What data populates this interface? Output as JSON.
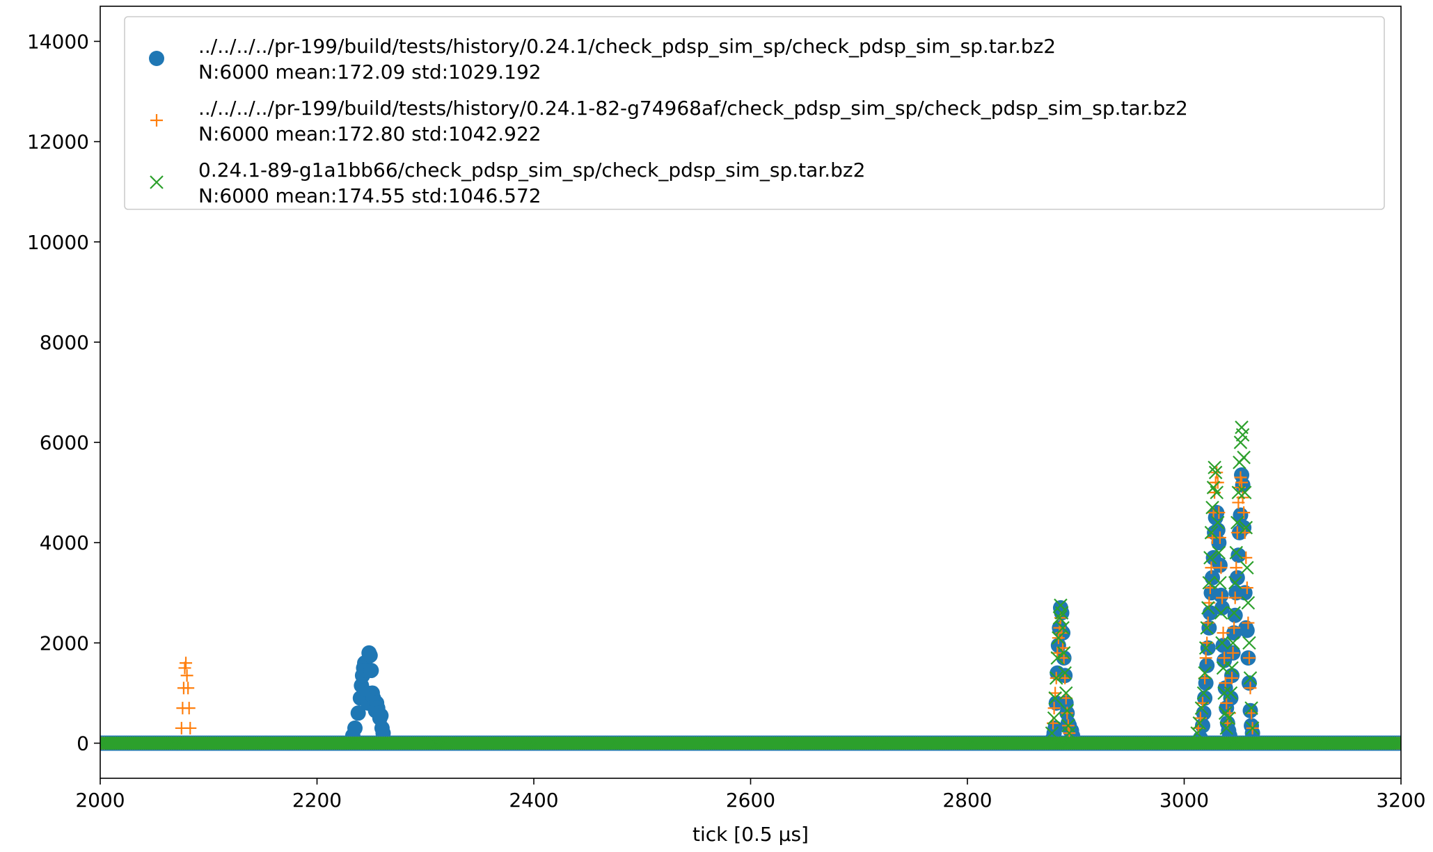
{
  "chart_data": {
    "type": "scatter",
    "xlabel": "tick [0.5 μs]",
    "ylabel": "",
    "title": "",
    "xlim": [
      2000,
      3200
    ],
    "ylim": [
      -700,
      14700
    ],
    "x_ticks": [
      2000,
      2200,
      2400,
      2600,
      2800,
      3000,
      3200
    ],
    "y_ticks": [
      0,
      2000,
      4000,
      6000,
      8000,
      10000,
      12000,
      14000
    ],
    "x_tick_labels": [
      "2000",
      "2200",
      "2400",
      "2600",
      "2800",
      "3000",
      "3200"
    ],
    "y_tick_labels": [
      "0",
      "2000",
      "4000",
      "6000",
      "8000",
      "10000",
      "12000",
      "14000"
    ],
    "grid": false,
    "legend_position": "top",
    "baseline": {
      "value": 0,
      "from": 2000,
      "to": 3200,
      "step": 2
    },
    "series": [
      {
        "name": "../../../../pr-199/build/tests/history/0.24.1/check_pdsp_sim_sp/check_pdsp_sim_sp.tar.bz2",
        "stats": "N:6000 mean:172.09 std:1029.192",
        "marker": "circle",
        "color": "#1f77b4",
        "points": [
          [
            2233,
            150
          ],
          [
            2235,
            300
          ],
          [
            2238,
            600
          ],
          [
            2240,
            900
          ],
          [
            2241,
            1150
          ],
          [
            2242,
            1350
          ],
          [
            2243,
            1500
          ],
          [
            2244,
            1600
          ],
          [
            2245,
            1450
          ],
          [
            2246,
            1000
          ],
          [
            2247,
            800
          ],
          [
            2248,
            1800
          ],
          [
            2249,
            1750
          ],
          [
            2250,
            1450
          ],
          [
            2251,
            1000
          ],
          [
            2252,
            900
          ],
          [
            2253,
            850
          ],
          [
            2254,
            650
          ],
          [
            2255,
            800
          ],
          [
            2256,
            700
          ],
          [
            2257,
            600
          ],
          [
            2258,
            500
          ],
          [
            2259,
            550
          ],
          [
            2260,
            300
          ],
          [
            2261,
            200
          ],
          [
            2879,
            100
          ],
          [
            2880,
            200
          ],
          [
            2881,
            300
          ],
          [
            2882,
            800
          ],
          [
            2883,
            1400
          ],
          [
            2884,
            1950
          ],
          [
            2885,
            2300
          ],
          [
            2886,
            2700
          ],
          [
            2887,
            2600
          ],
          [
            2888,
            2200
          ],
          [
            2889,
            1700
          ],
          [
            2890,
            1350
          ],
          [
            2891,
            800
          ],
          [
            2892,
            600
          ],
          [
            2893,
            400
          ],
          [
            2894,
            350
          ],
          [
            2895,
            250
          ],
          [
            2896,
            250
          ],
          [
            2897,
            150
          ],
          [
            3015,
            100
          ],
          [
            3017,
            350
          ],
          [
            3018,
            600
          ],
          [
            3019,
            900
          ],
          [
            3020,
            1200
          ],
          [
            3021,
            1550
          ],
          [
            3022,
            1900
          ],
          [
            3023,
            2300
          ],
          [
            3024,
            2600
          ],
          [
            3025,
            3000
          ],
          [
            3026,
            3300
          ],
          [
            3027,
            3700
          ],
          [
            3028,
            4200
          ],
          [
            3029,
            4500
          ],
          [
            3030,
            4600
          ],
          [
            3031,
            4250
          ],
          [
            3032,
            4000
          ],
          [
            3033,
            3550
          ],
          [
            3034,
            2950
          ],
          [
            3035,
            2700
          ],
          [
            3036,
            1950
          ],
          [
            3037,
            1650
          ],
          [
            3038,
            1100
          ],
          [
            3039,
            700
          ],
          [
            3040,
            400
          ],
          [
            3041,
            250
          ],
          [
            3042,
            150
          ],
          [
            3043,
            900
          ],
          [
            3044,
            1350
          ],
          [
            3045,
            1800
          ],
          [
            3046,
            2200
          ],
          [
            3047,
            2550
          ],
          [
            3048,
            3000
          ],
          [
            3049,
            3300
          ],
          [
            3050,
            3750
          ],
          [
            3051,
            4200
          ],
          [
            3052,
            4550
          ],
          [
            3053,
            5350
          ],
          [
            3054,
            5150
          ],
          [
            3055,
            4300
          ],
          [
            3056,
            3000
          ],
          [
            3057,
            2300
          ],
          [
            3058,
            2250
          ],
          [
            3059,
            1700
          ],
          [
            3060,
            1200
          ],
          [
            3061,
            650
          ],
          [
            3062,
            350
          ],
          [
            3063,
            200
          ]
        ]
      },
      {
        "name": "../../../../pr-199/build/tests/history/0.24.1-82-g74968af/check_pdsp_sim_sp/check_pdsp_sim_sp.tar.bz2",
        "stats": "N:6000 mean:172.80 std:1042.922",
        "marker": "plus",
        "color": "#ff7f0e",
        "points": [
          [
            2075,
            300
          ],
          [
            2076,
            700
          ],
          [
            2077,
            1100
          ],
          [
            2078,
            1500
          ],
          [
            2079,
            1600
          ],
          [
            2080,
            1350
          ],
          [
            2081,
            1100
          ],
          [
            2082,
            700
          ],
          [
            2083,
            300
          ],
          [
            2879,
            400
          ],
          [
            2880,
            700
          ],
          [
            2881,
            1000
          ],
          [
            2882,
            1300
          ],
          [
            2883,
            1800
          ],
          [
            2884,
            2100
          ],
          [
            2885,
            2300
          ],
          [
            2886,
            2500
          ],
          [
            2887,
            2200
          ],
          [
            2888,
            1900
          ],
          [
            2889,
            1700
          ],
          [
            2890,
            1300
          ],
          [
            2891,
            900
          ],
          [
            2892,
            600
          ],
          [
            2893,
            350
          ],
          [
            2894,
            200
          ],
          [
            3013,
            300
          ],
          [
            3015,
            500
          ],
          [
            3017,
            800
          ],
          [
            3019,
            1300
          ],
          [
            3020,
            1700
          ],
          [
            3021,
            2000
          ],
          [
            3022,
            2400
          ],
          [
            3023,
            2800
          ],
          [
            3024,
            3100
          ],
          [
            3025,
            3500
          ],
          [
            3026,
            4100
          ],
          [
            3027,
            4600
          ],
          [
            3028,
            5000
          ],
          [
            3029,
            5200
          ],
          [
            3030,
            5400
          ],
          [
            3031,
            5200
          ],
          [
            3032,
            4600
          ],
          [
            3033,
            4100
          ],
          [
            3034,
            3500
          ],
          [
            3035,
            2900
          ],
          [
            3036,
            2200
          ],
          [
            3037,
            1700
          ],
          [
            3038,
            1200
          ],
          [
            3039,
            800
          ],
          [
            3040,
            400
          ],
          [
            3042,
            600
          ],
          [
            3044,
            1300
          ],
          [
            3045,
            1800
          ],
          [
            3046,
            2300
          ],
          [
            3047,
            2900
          ],
          [
            3048,
            3500
          ],
          [
            3049,
            4200
          ],
          [
            3050,
            4800
          ],
          [
            3051,
            5100
          ],
          [
            3052,
            5300
          ],
          [
            3053,
            5200
          ],
          [
            3054,
            4900
          ],
          [
            3055,
            4600
          ],
          [
            3056,
            4200
          ],
          [
            3057,
            3700
          ],
          [
            3058,
            3100
          ],
          [
            3059,
            2400
          ],
          [
            3060,
            1700
          ],
          [
            3061,
            1100
          ],
          [
            3062,
            600
          ],
          [
            3063,
            300
          ]
        ]
      },
      {
        "name": "0.24.1-89-g1a1bb66/check_pdsp_sim_sp/check_pdsp_sim_sp.tar.bz2",
        "stats": "N:6000 mean:174.55 std:1046.572",
        "marker": "x",
        "color": "#2ca02c",
        "points": [
          [
            2878,
            200
          ],
          [
            2880,
            500
          ],
          [
            2881,
            900
          ],
          [
            2882,
            1300
          ],
          [
            2883,
            1700
          ],
          [
            2884,
            2100
          ],
          [
            2885,
            2500
          ],
          [
            2886,
            2750
          ],
          [
            2887,
            2600
          ],
          [
            2888,
            2300
          ],
          [
            2889,
            1800
          ],
          [
            2890,
            1400
          ],
          [
            2891,
            1000
          ],
          [
            2892,
            650
          ],
          [
            2893,
            350
          ],
          [
            2894,
            200
          ],
          [
            3012,
            200
          ],
          [
            3014,
            400
          ],
          [
            3016,
            700
          ],
          [
            3018,
            1000
          ],
          [
            3019,
            1400
          ],
          [
            3020,
            1900
          ],
          [
            3021,
            2300
          ],
          [
            3022,
            2700
          ],
          [
            3023,
            3200
          ],
          [
            3024,
            3700
          ],
          [
            3025,
            4200
          ],
          [
            3026,
            4700
          ],
          [
            3027,
            5100
          ],
          [
            3028,
            5500
          ],
          [
            3029,
            5400
          ],
          [
            3030,
            5000
          ],
          [
            3031,
            4400
          ],
          [
            3032,
            3800
          ],
          [
            3033,
            3200
          ],
          [
            3034,
            2600
          ],
          [
            3035,
            2000
          ],
          [
            3036,
            1500
          ],
          [
            3037,
            1000
          ],
          [
            3038,
            600
          ],
          [
            3039,
            300
          ],
          [
            3041,
            500
          ],
          [
            3043,
            1000
          ],
          [
            3044,
            1500
          ],
          [
            3045,
            2000
          ],
          [
            3046,
            2600
          ],
          [
            3047,
            3200
          ],
          [
            3048,
            3800
          ],
          [
            3049,
            4400
          ],
          [
            3050,
            5000
          ],
          [
            3051,
            5600
          ],
          [
            3052,
            6000
          ],
          [
            3053,
            6300
          ],
          [
            3054,
            6150
          ],
          [
            3055,
            5700
          ],
          [
            3056,
            5000
          ],
          [
            3057,
            4300
          ],
          [
            3058,
            3500
          ],
          [
            3059,
            2800
          ],
          [
            3060,
            2000
          ],
          [
            3061,
            1300
          ],
          [
            3062,
            700
          ],
          [
            3063,
            300
          ]
        ]
      }
    ]
  }
}
